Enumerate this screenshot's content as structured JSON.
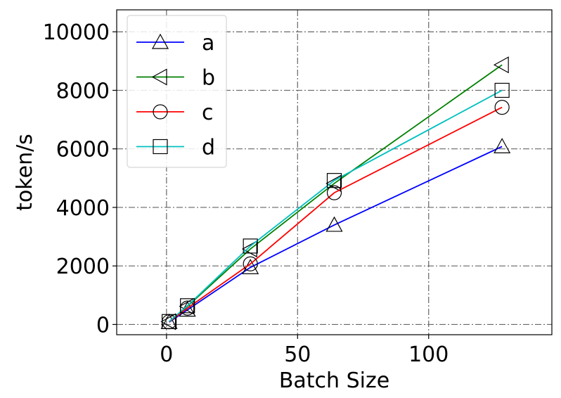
{
  "chart_data": {
    "type": "line",
    "xlabel": "Batch Size",
    "ylabel": "token/s",
    "xlim": [
      -19,
      147
    ],
    "ylim": [
      -350,
      10750
    ],
    "xticks": [
      0,
      50,
      100
    ],
    "yticks": [
      0,
      2000,
      4000,
      6000,
      8000,
      10000
    ],
    "grid": true,
    "legend_position": "upper-left",
    "x": [
      1,
      8,
      32,
      64,
      128
    ],
    "series": [
      {
        "name": "a",
        "values": [
          80,
          500,
          1950,
          3400,
          6080
        ],
        "color": "#0000ff",
        "marker": "triangle-up"
      },
      {
        "name": "b",
        "values": [
          95,
          620,
          2580,
          4820,
          8870
        ],
        "color": "#008000",
        "marker": "triangle-left"
      },
      {
        "name": "c",
        "values": [
          90,
          560,
          2070,
          4500,
          7420
        ],
        "color": "#ff0000",
        "marker": "circle"
      },
      {
        "name": "d",
        "values": [
          100,
          640,
          2680,
          4920,
          8000
        ],
        "color": "#00bfbf",
        "marker": "square"
      }
    ]
  }
}
